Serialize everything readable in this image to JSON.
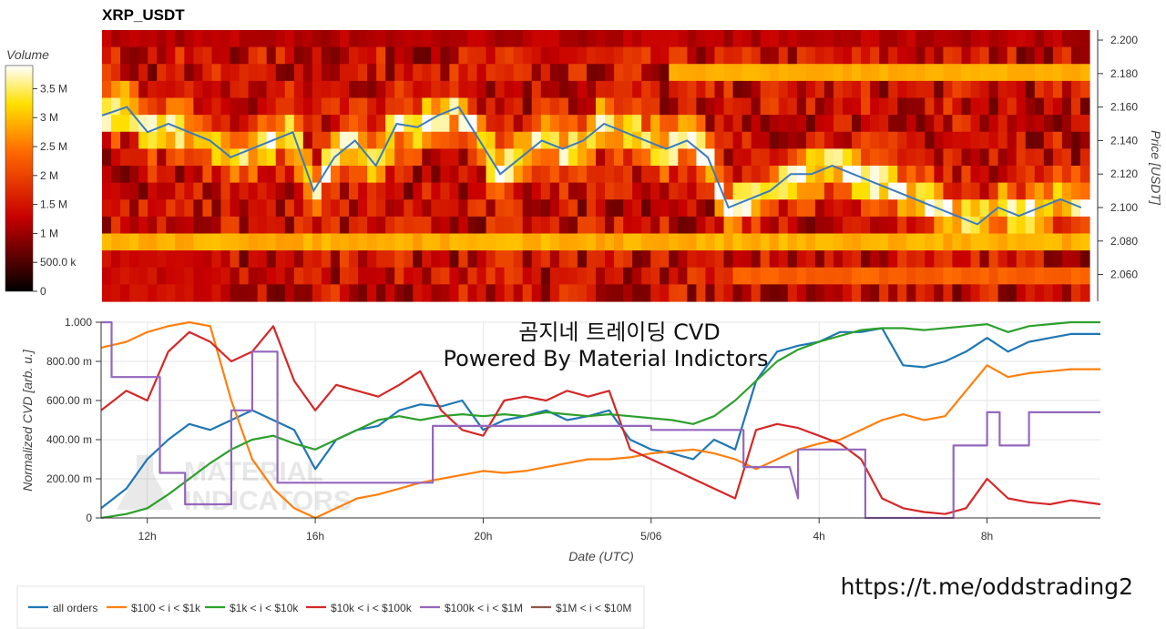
{
  "heatmap": {
    "title": "XRP_USDT",
    "colorbar_label": "Volume",
    "colorbar_ticks": [
      "0",
      "500.0 k",
      "1 M",
      "1.5 M",
      "2 M",
      "2.5 M",
      "3 M",
      "3.5 M"
    ],
    "colorbar_values": [
      0,
      500000,
      1000000,
      1500000,
      2000000,
      2500000,
      3000000,
      3500000
    ],
    "colorbar_max": 3900000,
    "ylabel": "Price [USDT]",
    "price_ticks": [
      "2.200",
      "2.180",
      "2.160",
      "2.140",
      "2.120",
      "2.100",
      "2.080",
      "2.060"
    ],
    "price_tick_values": [
      2.2,
      2.18,
      2.16,
      2.14,
      2.12,
      2.1,
      2.08,
      2.06
    ],
    "price_range": [
      2.044,
      2.206
    ]
  },
  "cvd": {
    "overlay_line1": "곰지네 트레이딩 CVD",
    "overlay_line2": "Powered By Material Indictors",
    "ylabel": "Normalized CVD [arb. u.]",
    "xlabel": "Date (UTC)",
    "y_ticks": [
      "0",
      "200.00 m",
      "400.00 m",
      "600.00 m",
      "800.00 m",
      "1.000"
    ],
    "y_tick_values": [
      0,
      0.2,
      0.4,
      0.6,
      0.8,
      1.0
    ],
    "x_ticks": [
      "12h",
      "16h",
      "20h",
      "5/06",
      "4h",
      "8h"
    ],
    "x_tick_hours": [
      12,
      16,
      20,
      24,
      28,
      32
    ],
    "x_range_hours": [
      10.9,
      34.7
    ],
    "watermark_line1": "MATERIAL",
    "watermark_line2": "INDICATORS"
  },
  "link_text": "https://t.me/oddstrading2",
  "legend": [
    {
      "label": "all orders",
      "color": "#1f77b4"
    },
    {
      "label": "$100 < i < $1k",
      "color": "#ff7f0e"
    },
    {
      "label": "$1k < i < $10k",
      "color": "#2ca02c"
    },
    {
      "label": "$10k < i < $100k",
      "color": "#d62728"
    },
    {
      "label": "$100k < i < $1M",
      "color": "#9467bd"
    },
    {
      "label": "$1M < i < $10M",
      "color": "#8c564b"
    }
  ],
  "chart_data": [
    {
      "type": "heatmap",
      "title": "XRP_USDT",
      "y_label": "Price [USDT]",
      "colorbar_label": "Volume",
      "price_line": {
        "color": "#3b7bbf",
        "x_hours": [
          10.9,
          11.5,
          12,
          12.5,
          13,
          13.5,
          14,
          14.5,
          15,
          15.5,
          16,
          16.5,
          17,
          17.5,
          18,
          18.5,
          19,
          19.5,
          20,
          20.5,
          21,
          21.5,
          22,
          22.5,
          23,
          23.5,
          24,
          24.5,
          25,
          25.5,
          26,
          26.5,
          27,
          27.5,
          28,
          28.5,
          29,
          29.5,
          30,
          30.5,
          31,
          31.5,
          32,
          32.5,
          33,
          33.5,
          34,
          34.5
        ],
        "price": [
          2.155,
          2.16,
          2.145,
          2.15,
          2.145,
          2.14,
          2.13,
          2.135,
          2.14,
          2.145,
          2.11,
          2.13,
          2.14,
          2.125,
          2.15,
          2.148,
          2.155,
          2.16,
          2.14,
          2.12,
          2.13,
          2.14,
          2.135,
          2.14,
          2.15,
          2.145,
          2.14,
          2.135,
          2.14,
          2.13,
          2.1,
          2.105,
          2.11,
          2.12,
          2.12,
          2.125,
          2.12,
          2.115,
          2.11,
          2.105,
          2.1,
          2.095,
          2.09,
          2.1,
          2.095,
          2.1,
          2.105,
          2.1
        ]
      }
    },
    {
      "type": "line",
      "x_unit": "hours (UTC, 24 = 5/06 00:00)",
      "series": [
        {
          "name": "all orders",
          "x": [
            10.9,
            11.5,
            12,
            12.5,
            13,
            13.5,
            14,
            14.5,
            15,
            15.5,
            16,
            16.5,
            17,
            17.5,
            18,
            18.5,
            19,
            19.5,
            20,
            20.5,
            21,
            21.5,
            22,
            22.5,
            23,
            23.5,
            24,
            24.5,
            25,
            25.5,
            26,
            26.5,
            27,
            27.5,
            28,
            28.5,
            29,
            29.5,
            30,
            30.5,
            31,
            31.5,
            32,
            32.5,
            33,
            33.5,
            34,
            34.7
          ],
          "y": [
            0.05,
            0.15,
            0.3,
            0.4,
            0.48,
            0.45,
            0.5,
            0.55,
            0.5,
            0.45,
            0.25,
            0.4,
            0.45,
            0.47,
            0.55,
            0.58,
            0.57,
            0.6,
            0.45,
            0.5,
            0.52,
            0.55,
            0.5,
            0.52,
            0.55,
            0.4,
            0.35,
            0.33,
            0.3,
            0.4,
            0.35,
            0.7,
            0.85,
            0.88,
            0.9,
            0.95,
            0.95,
            0.97,
            0.78,
            0.77,
            0.8,
            0.85,
            0.92,
            0.85,
            0.9,
            0.92,
            0.94,
            0.94
          ]
        },
        {
          "name": "$100 < i < $1k",
          "x": [
            10.9,
            11.5,
            12,
            12.5,
            13,
            13.5,
            14,
            14.5,
            15,
            15.5,
            16,
            16.5,
            17,
            17.5,
            18,
            18.5,
            19,
            19.5,
            20,
            20.5,
            21,
            21.5,
            22,
            22.5,
            23,
            23.5,
            24,
            24.5,
            25,
            25.5,
            26,
            26.5,
            27,
            27.5,
            28,
            28.5,
            29,
            29.5,
            30,
            30.5,
            31,
            31.5,
            32,
            32.5,
            33,
            33.5,
            34,
            34.7
          ],
          "y": [
            0.87,
            0.9,
            0.95,
            0.98,
            1.0,
            0.98,
            0.6,
            0.3,
            0.15,
            0.05,
            0.0,
            0.05,
            0.1,
            0.12,
            0.15,
            0.18,
            0.2,
            0.22,
            0.24,
            0.23,
            0.24,
            0.26,
            0.28,
            0.3,
            0.3,
            0.31,
            0.33,
            0.34,
            0.35,
            0.33,
            0.3,
            0.25,
            0.3,
            0.35,
            0.38,
            0.4,
            0.45,
            0.5,
            0.53,
            0.5,
            0.52,
            0.65,
            0.78,
            0.72,
            0.74,
            0.75,
            0.76,
            0.76
          ]
        },
        {
          "name": "$1k < i < $10k",
          "x": [
            10.9,
            11.5,
            12,
            12.5,
            13,
            13.5,
            14,
            14.5,
            15,
            15.5,
            16,
            16.5,
            17,
            17.5,
            18,
            18.5,
            19,
            19.5,
            20,
            20.5,
            21,
            21.5,
            22,
            22.5,
            23,
            23.5,
            24,
            24.5,
            25,
            25.5,
            26,
            26.5,
            27,
            27.5,
            28,
            28.5,
            29,
            29.5,
            30,
            30.5,
            31,
            31.5,
            32,
            32.5,
            33,
            33.5,
            34,
            34.7
          ],
          "y": [
            0.0,
            0.02,
            0.05,
            0.12,
            0.2,
            0.28,
            0.35,
            0.4,
            0.42,
            0.38,
            0.35,
            0.4,
            0.45,
            0.5,
            0.52,
            0.5,
            0.52,
            0.53,
            0.52,
            0.53,
            0.52,
            0.54,
            0.53,
            0.52,
            0.53,
            0.52,
            0.51,
            0.5,
            0.48,
            0.52,
            0.6,
            0.7,
            0.8,
            0.86,
            0.9,
            0.93,
            0.96,
            0.97,
            0.97,
            0.96,
            0.97,
            0.98,
            0.99,
            0.95,
            0.98,
            0.99,
            1.0,
            1.0
          ]
        },
        {
          "name": "$10k < i < $100k",
          "x": [
            10.9,
            11.5,
            12,
            12.5,
            13,
            13.5,
            14,
            14.5,
            15,
            15.5,
            16,
            16.5,
            17,
            17.5,
            18,
            18.5,
            19,
            19.5,
            20,
            20.5,
            21,
            21.5,
            22,
            22.5,
            23,
            23.5,
            24,
            24.5,
            25,
            25.5,
            26,
            26.5,
            27,
            27.5,
            28,
            28.5,
            29,
            29.5,
            30,
            30.5,
            31,
            31.5,
            32,
            32.5,
            33,
            33.5,
            34,
            34.7
          ],
          "y": [
            0.55,
            0.65,
            0.6,
            0.85,
            0.95,
            0.9,
            0.8,
            0.85,
            0.98,
            0.7,
            0.55,
            0.68,
            0.65,
            0.62,
            0.68,
            0.75,
            0.55,
            0.45,
            0.42,
            0.6,
            0.62,
            0.6,
            0.65,
            0.62,
            0.65,
            0.35,
            0.3,
            0.25,
            0.2,
            0.15,
            0.1,
            0.45,
            0.48,
            0.46,
            0.42,
            0.38,
            0.3,
            0.1,
            0.05,
            0.03,
            0.02,
            0.05,
            0.2,
            0.1,
            0.08,
            0.07,
            0.09,
            0.07
          ]
        },
        {
          "name": "$100k < i < $1M",
          "x": [
            10.9,
            11.15,
            11.15,
            12.3,
            12.3,
            12.9,
            12.9,
            14.0,
            14.0,
            14.5,
            14.5,
            15.1,
            15.1,
            15.8,
            15.8,
            18.8,
            18.8,
            24.0,
            24.0,
            26.2,
            26.2,
            27.3,
            27.3,
            27.5,
            27.5,
            29.1,
            29.1,
            31.2,
            31.2,
            32.0,
            32.0,
            32.3,
            32.3,
            33.0,
            33.0,
            34.7
          ],
          "y": [
            1.0,
            1.0,
            0.72,
            0.72,
            0.23,
            0.23,
            0.07,
            0.07,
            0.55,
            0.55,
            0.85,
            0.85,
            0.18,
            0.18,
            0.18,
            0.18,
            0.47,
            0.47,
            0.45,
            0.45,
            0.26,
            0.26,
            0.26,
            0.1,
            0.35,
            0.35,
            0.0,
            0.0,
            0.37,
            0.37,
            0.54,
            0.54,
            0.37,
            0.37,
            0.54,
            0.54
          ]
        },
        {
          "name": "$1M < i < $10M",
          "x": [],
          "y": []
        }
      ],
      "xlabel": "Date (UTC)",
      "ylabel": "Normalized CVD [arb. u.]",
      "ylim": [
        0,
        1.0
      ],
      "legend_position": "bottom"
    }
  ]
}
